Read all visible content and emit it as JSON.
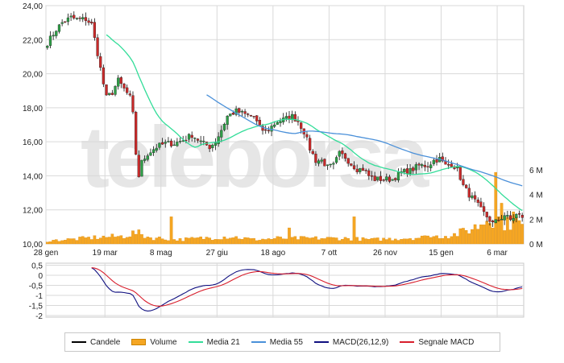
{
  "chart_data": {
    "type": "candlestick",
    "watermark": "teleborsa",
    "x_ticks": [
      "28 gen",
      "19 mar",
      "8 mag",
      "27 giu",
      "18 ago",
      "7 ott",
      "26 nov",
      "15 gen",
      "6 mar"
    ],
    "price_axis": {
      "ticks": [
        "24,00",
        "22,00",
        "20,00",
        "18,00",
        "16,00",
        "14,00",
        "12,00",
        "10,00"
      ],
      "ylim": [
        10,
        24
      ]
    },
    "volume_axis": {
      "ticks": [
        "6 M",
        "4 M",
        "2 M",
        "0 M"
      ],
      "ylim": [
        0,
        6
      ]
    },
    "macd_axis": {
      "ticks": [
        "0,5",
        "0",
        "-0,5",
        "-1",
        "-1,5",
        "-2"
      ],
      "ylim": [
        -2,
        0.5
      ]
    },
    "close_keypoints": [
      [
        0,
        21.8
      ],
      [
        3,
        22.6
      ],
      [
        5,
        23.0
      ],
      [
        8,
        23.3
      ],
      [
        10,
        23.2
      ],
      [
        13,
        23.2
      ],
      [
        15,
        22.9
      ],
      [
        17,
        21.2
      ],
      [
        19,
        19.4
      ],
      [
        20,
        18.6
      ],
      [
        22,
        18.9
      ],
      [
        24,
        19.6
      ],
      [
        26,
        19.1
      ],
      [
        28,
        18.6
      ],
      [
        29,
        17.6
      ],
      [
        30,
        15.3
      ],
      [
        31,
        14.0
      ],
      [
        32,
        14.8
      ],
      [
        34,
        15.3
      ],
      [
        37,
        15.7
      ],
      [
        40,
        15.9
      ],
      [
        43,
        15.9
      ],
      [
        46,
        16.1
      ],
      [
        49,
        16.4
      ],
      [
        52,
        16.0
      ],
      [
        55,
        15.7
      ],
      [
        57,
        16.0
      ],
      [
        59,
        16.7
      ],
      [
        61,
        17.5
      ],
      [
        64,
        17.8
      ],
      [
        67,
        17.6
      ],
      [
        70,
        17.5
      ],
      [
        72,
        16.8
      ],
      [
        74,
        16.6
      ],
      [
        76,
        16.9
      ],
      [
        78,
        17.2
      ],
      [
        80,
        17.3
      ],
      [
        83,
        17.5
      ],
      [
        85,
        17.2
      ],
      [
        87,
        16.6
      ],
      [
        89,
        15.6
      ],
      [
        91,
        14.9
      ],
      [
        93,
        14.9
      ],
      [
        95,
        14.5
      ],
      [
        97,
        14.6
      ],
      [
        99,
        15.3
      ],
      [
        101,
        15.1
      ],
      [
        103,
        14.7
      ],
      [
        105,
        14.4
      ],
      [
        107,
        14.4
      ],
      [
        109,
        14.0
      ],
      [
        111,
        13.8
      ],
      [
        114,
        13.8
      ],
      [
        117,
        13.8
      ],
      [
        120,
        14.2
      ],
      [
        123,
        14.3
      ],
      [
        126,
        14.6
      ],
      [
        129,
        14.6
      ],
      [
        131,
        14.9
      ],
      [
        133,
        15.0
      ],
      [
        135,
        14.6
      ],
      [
        137,
        14.7
      ],
      [
        139,
        14.4
      ],
      [
        141,
        13.4
      ],
      [
        143,
        12.9
      ],
      [
        145,
        12.5
      ],
      [
        147,
        12.0
      ],
      [
        149,
        11.6
      ],
      [
        151,
        11.2
      ],
      [
        153,
        11.4
      ],
      [
        155,
        11.7
      ],
      [
        157,
        11.4
      ],
      [
        159,
        11.7
      ],
      [
        161,
        11.6
      ]
    ],
    "volume_keypoints": [
      [
        0,
        0.25
      ],
      [
        10,
        0.4
      ],
      [
        18,
        0.55
      ],
      [
        25,
        0.6
      ],
      [
        30,
        0.9
      ],
      [
        35,
        0.5
      ],
      [
        45,
        0.35
      ],
      [
        55,
        0.5
      ],
      [
        62,
        0.6
      ],
      [
        70,
        0.35
      ],
      [
        80,
        0.45
      ],
      [
        90,
        0.45
      ],
      [
        100,
        0.45
      ],
      [
        110,
        0.35
      ],
      [
        120,
        0.45
      ],
      [
        130,
        0.55
      ],
      [
        138,
        0.75
      ],
      [
        142,
        1.05
      ],
      [
        146,
        1.45
      ],
      [
        150,
        2.2
      ],
      [
        153,
        2.0
      ],
      [
        156,
        1.6
      ],
      [
        159,
        1.9
      ],
      [
        161,
        1.4
      ]
    ],
    "volume_spikes": [
      [
        42,
        2.2
      ],
      [
        78,
        0.6
      ],
      [
        82,
        1.3
      ],
      [
        104,
        2.2
      ],
      [
        129,
        0.65
      ],
      [
        152,
        5.8
      ],
      [
        154,
        3.3
      ],
      [
        158,
        2.6
      ]
    ],
    "n_bars": 162,
    "moving_average_periods": [
      21,
      55
    ],
    "macd_params": [
      12,
      26,
      9
    ],
    "legend": [
      {
        "label": "Candele",
        "color": "#000000",
        "kind": "line"
      },
      {
        "label": "Volume",
        "color": "#f5a623",
        "kind": "box"
      },
      {
        "label": "Media 21",
        "color": "#33dd99",
        "kind": "line"
      },
      {
        "label": "Media 55",
        "color": "#4a90d9",
        "kind": "line"
      },
      {
        "label": "MACD(26,12,9)",
        "color": "#101080",
        "kind": "line"
      },
      {
        "label": "Segnale MACD",
        "color": "#d81e2c",
        "kind": "line"
      }
    ],
    "colors": {
      "candle_up": "#2e9e47",
      "candle_down": "#c92a2a",
      "candle_wick": "#111111",
      "volume": "#f5a623",
      "volume_border": "#d98500",
      "grid": "#d9d9d9"
    }
  }
}
